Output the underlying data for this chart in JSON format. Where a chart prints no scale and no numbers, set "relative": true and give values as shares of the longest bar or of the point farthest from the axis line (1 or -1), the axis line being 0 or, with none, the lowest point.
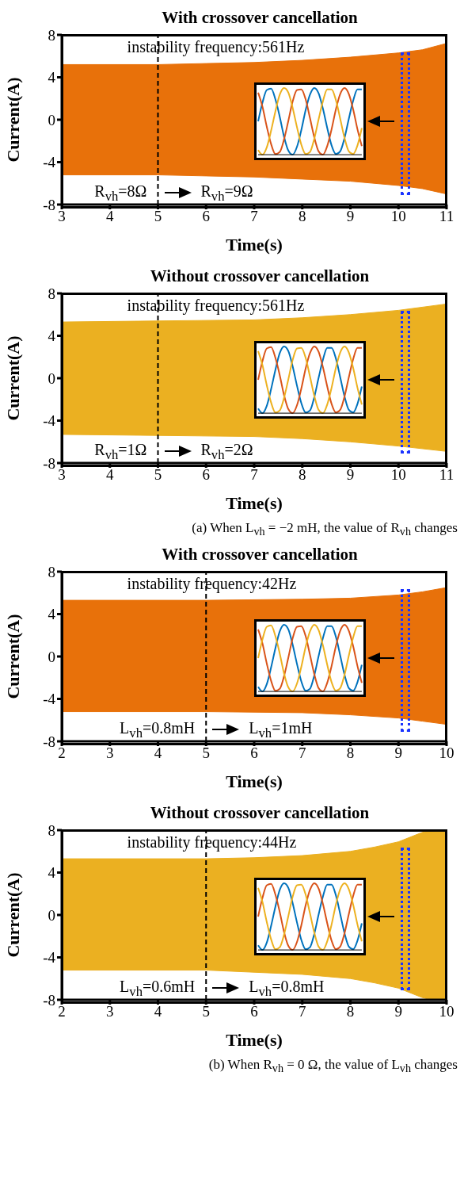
{
  "chart_data": [
    {
      "type": "area",
      "title": "With crossover cancellation",
      "xlabel": "Time(s)",
      "ylabel": "Current(A)",
      "x": [
        3,
        5,
        6,
        7,
        8,
        9,
        10,
        10.5,
        11
      ],
      "series": [
        {
          "color": "#e8710a",
          "values": [
            5.2,
            5.2,
            5.3,
            5.4,
            5.6,
            5.9,
            6.3,
            6.6,
            7.2
          ]
        },
        {
          "color": "#e8710a",
          "values": [
            -5.2,
            -5.2,
            -5.3,
            -5.4,
            -5.6,
            -5.8,
            -6.2,
            -6.5,
            -7.0
          ]
        }
      ],
      "xlim": [
        3,
        11
      ],
      "xticks": [
        3,
        4,
        5,
        6,
        7,
        8,
        9,
        10,
        11
      ],
      "ylim": [
        -8,
        8
      ],
      "yticks": [
        -8,
        -4,
        0,
        4,
        8
      ],
      "ref_lines": [
        {
          "axis": "x",
          "value": 5,
          "color": "#000000",
          "line_style": "dashed"
        }
      ],
      "annotations": [
        "instability frequency:561Hz",
        "R$_{vh}$=8Ω",
        "R$_{vh}$=9Ω"
      ]
    },
    {
      "type": "line",
      "relative": true,
      "categories": [
        null,
        null,
        null,
        null,
        null,
        null,
        null,
        null,
        null,
        null,
        null,
        null,
        null,
        null,
        null,
        null,
        null,
        null,
        null,
        null,
        null,
        null,
        null,
        null,
        null
      ],
      "series": [
        {
          "color": "#0072bd",
          "values": [
            0.5,
            0.78,
            0.97,
            0.99,
            0.83,
            0.57,
            0.27,
            0.06,
            0.0,
            0.12,
            0.37,
            0.67,
            0.9,
            1.0,
            0.92,
            0.69,
            0.4,
            0.14,
            0.01,
            0.05,
            0.25,
            0.54,
            0.81,
            0.98,
            0.98
          ]
        },
        {
          "color": "#d95319",
          "values": [
            0.93,
            0.72,
            0.42,
            0.16,
            0.01,
            0.04,
            0.23,
            0.51,
            0.8,
            0.97,
            0.98,
            0.83,
            0.55,
            0.26,
            0.05,
            0.0,
            0.13,
            0.38,
            0.68,
            0.91,
            1.0,
            0.91,
            0.68,
            0.38,
            0.13
          ]
        },
        {
          "color": "#edb120",
          "values": [
            0.07,
            0.0,
            0.11,
            0.36,
            0.65,
            0.9,
            1.0,
            0.93,
            0.7,
            0.41,
            0.15,
            0.01,
            0.04,
            0.24,
            0.53,
            0.8,
            0.98,
            0.98,
            0.82,
            0.54,
            0.25,
            0.05,
            0.01,
            0.14,
            0.4
          ]
        }
      ]
    },
    {
      "type": "area",
      "title": "Without crossover cancellation",
      "xlabel": "Time(s)",
      "ylabel": "Current(A)",
      "x": [
        3,
        5,
        7,
        8,
        9,
        10,
        11
      ],
      "series": [
        {
          "color": "#ebb021",
          "values": [
            5.3,
            5.4,
            5.5,
            5.7,
            6.0,
            6.4,
            7.0
          ]
        },
        {
          "color": "#ebb021",
          "values": [
            -5.3,
            -5.4,
            -5.5,
            -5.7,
            -6.0,
            -6.4,
            -6.9
          ]
        }
      ],
      "xlim": [
        3,
        11
      ],
      "xticks": [
        3,
        4,
        5,
        6,
        7,
        8,
        9,
        10,
        11
      ],
      "ylim": [
        -8,
        8
      ],
      "yticks": [
        -8,
        -4,
        0,
        4,
        8
      ],
      "ref_lines": [
        {
          "axis": "x",
          "value": 5,
          "color": "#000000",
          "line_style": "dashed"
        }
      ],
      "annotations": [
        "instability frequency:561Hz",
        "R$_{vh}$=1Ω",
        "R$_{vh}$=2Ω",
        "(a) When L$_{vh}$ = −2 mH, the value of R$_{vh}$ changes"
      ]
    },
    {
      "type": "line",
      "relative": true,
      "categories": [
        null,
        null,
        null,
        null,
        null,
        null,
        null,
        null,
        null,
        null,
        null,
        null,
        null,
        null,
        null,
        null,
        null,
        null,
        null,
        null,
        null,
        null,
        null,
        null,
        null
      ],
      "series": [
        {
          "color": "#0072bd",
          "values": [
            0.07,
            0.0,
            0.11,
            0.36,
            0.65,
            0.9,
            1.0,
            0.93,
            0.7,
            0.41,
            0.15,
            0.01,
            0.04,
            0.24,
            0.53,
            0.8,
            0.98,
            0.98,
            0.82,
            0.54,
            0.25,
            0.05,
            0.01,
            0.14,
            0.4
          ]
        },
        {
          "color": "#d95319",
          "values": [
            0.5,
            0.78,
            0.97,
            0.99,
            0.83,
            0.57,
            0.27,
            0.06,
            0.0,
            0.12,
            0.37,
            0.67,
            0.9,
            1.0,
            0.92,
            0.69,
            0.4,
            0.14,
            0.01,
            0.05,
            0.25,
            0.54,
            0.81,
            0.98,
            0.98
          ]
        },
        {
          "color": "#edb120",
          "values": [
            0.93,
            0.72,
            0.42,
            0.16,
            0.01,
            0.04,
            0.23,
            0.51,
            0.8,
            0.97,
            0.98,
            0.83,
            0.55,
            0.26,
            0.05,
            0.0,
            0.13,
            0.38,
            0.68,
            0.91,
            1.0,
            0.91,
            0.68,
            0.38,
            0.13
          ]
        }
      ]
    },
    {
      "type": "area",
      "title": "With crossover cancellation",
      "xlabel": "Time(s)",
      "ylabel": "Current(A)",
      "x": [
        2,
        5,
        7,
        8,
        9,
        9.5,
        10
      ],
      "series": [
        {
          "color": "#e8710a",
          "values": [
            5.3,
            5.3,
            5.4,
            5.5,
            5.8,
            6.1,
            6.5
          ]
        },
        {
          "color": "#e8710a",
          "values": [
            -5.2,
            -5.2,
            -5.3,
            -5.5,
            -5.8,
            -6.1,
            -6.4
          ]
        }
      ],
      "xlim": [
        2,
        10
      ],
      "xticks": [
        2,
        3,
        4,
        5,
        6,
        7,
        8,
        9,
        10
      ],
      "ylim": [
        -8,
        8
      ],
      "yticks": [
        -8,
        -4,
        0,
        4,
        8
      ],
      "ref_lines": [
        {
          "axis": "x",
          "value": 5,
          "color": "#000000",
          "line_style": "dashed"
        }
      ],
      "annotations": [
        "instability frequency:42Hz",
        "L$_{vh}$=0.8mH",
        "L$_{vh}$=1mH"
      ]
    },
    {
      "type": "line",
      "relative": true,
      "categories": [
        null,
        null,
        null,
        null,
        null,
        null,
        null,
        null,
        null,
        null,
        null,
        null,
        null,
        null,
        null,
        null,
        null,
        null,
        null,
        null,
        null,
        null,
        null,
        null,
        null
      ],
      "series": [
        {
          "color": "#0072bd",
          "values": [
            0.07,
            0.0,
            0.11,
            0.36,
            0.65,
            0.9,
            1.0,
            0.93,
            0.7,
            0.41,
            0.15,
            0.01,
            0.04,
            0.24,
            0.53,
            0.8,
            0.98,
            0.98,
            0.82,
            0.54,
            0.25,
            0.05,
            0.01,
            0.14,
            0.4
          ]
        },
        {
          "color": "#d95319",
          "values": [
            0.93,
            0.72,
            0.42,
            0.16,
            0.01,
            0.04,
            0.23,
            0.51,
            0.8,
            0.97,
            0.98,
            0.83,
            0.55,
            0.26,
            0.05,
            0.0,
            0.13,
            0.38,
            0.68,
            0.91,
            1.0,
            0.91,
            0.68,
            0.38,
            0.13
          ]
        },
        {
          "color": "#edb120",
          "values": [
            0.5,
            0.78,
            0.97,
            0.99,
            0.83,
            0.57,
            0.27,
            0.06,
            0.0,
            0.12,
            0.37,
            0.67,
            0.9,
            1.0,
            0.92,
            0.69,
            0.4,
            0.14,
            0.01,
            0.05,
            0.25,
            0.54,
            0.81,
            0.98,
            0.98
          ]
        }
      ]
    },
    {
      "type": "area",
      "title": "Without crossover cancellation",
      "xlabel": "Time(s)",
      "ylabel": "Current(A)",
      "x": [
        2,
        5,
        6,
        7,
        8,
        8.5,
        9,
        9.5,
        9.7,
        10
      ],
      "series": [
        {
          "color": "#ebb021",
          "values": [
            5.3,
            5.3,
            5.4,
            5.6,
            6.0,
            6.4,
            6.9,
            7.8,
            8.0,
            8.0
          ]
        },
        {
          "color": "#ebb021",
          "values": [
            -5.2,
            -5.2,
            -5.4,
            -5.6,
            -6.0,
            -6.4,
            -6.9,
            -7.8,
            -8.0,
            -8.0
          ]
        }
      ],
      "xlim": [
        2,
        10
      ],
      "xticks": [
        2,
        3,
        4,
        5,
        6,
        7,
        8,
        9,
        10
      ],
      "ylim": [
        -8,
        8
      ],
      "yticks": [
        -8,
        -4,
        0,
        4,
        8
      ],
      "ref_lines": [
        {
          "axis": "x",
          "value": 5,
          "color": "#000000",
          "line_style": "dashed"
        }
      ],
      "annotations": [
        "instability frequency:44Hz",
        "L$_{vh}$=0.6mH",
        "L$_{vh}$=0.8mH",
        "(b) When R$_{vh}$ = 0 Ω, the value of L$_{vh}$ changes"
      ]
    },
    {
      "type": "line",
      "relative": true,
      "categories": [
        null,
        null,
        null,
        null,
        null,
        null,
        null,
        null,
        null,
        null,
        null,
        null,
        null,
        null,
        null,
        null,
        null,
        null,
        null,
        null,
        null,
        null,
        null,
        null,
        null
      ],
      "series": [
        {
          "color": "#0072bd",
          "values": [
            0.07,
            0.0,
            0.11,
            0.36,
            0.65,
            0.9,
            1.0,
            0.93,
            0.7,
            0.41,
            0.15,
            0.01,
            0.04,
            0.24,
            0.53,
            0.8,
            0.98,
            0.98,
            0.82,
            0.54,
            0.25,
            0.05,
            0.01,
            0.14,
            0.4
          ]
        },
        {
          "color": "#d95319",
          "values": [
            0.5,
            0.78,
            0.97,
            0.99,
            0.83,
            0.57,
            0.27,
            0.06,
            0.0,
            0.12,
            0.37,
            0.67,
            0.9,
            1.0,
            0.92,
            0.69,
            0.4,
            0.14,
            0.01,
            0.05,
            0.25,
            0.54,
            0.81,
            0.98,
            0.98
          ]
        },
        {
          "color": "#edb120",
          "values": [
            0.93,
            0.72,
            0.42,
            0.16,
            0.01,
            0.04,
            0.23,
            0.51,
            0.8,
            0.97,
            0.98,
            0.83,
            0.55,
            0.26,
            0.05,
            0.0,
            0.13,
            0.38,
            0.68,
            0.91,
            1.0,
            0.91,
            0.68,
            0.38,
            0.13
          ]
        }
      ]
    }
  ]
}
